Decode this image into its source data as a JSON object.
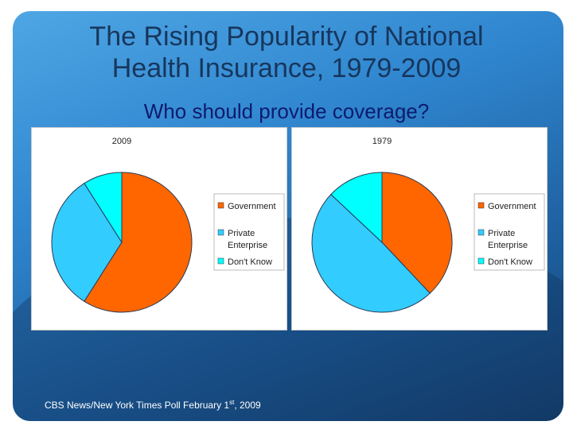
{
  "slide": {
    "title_line1": "The Rising Popularity of National",
    "title_line2": "Health Insurance, 1979-2009",
    "subtitle": "Who should provide coverage?",
    "source_prefix": "CBS News/New York Times Poll February 1",
    "source_sup": "st",
    "source_suffix": ", 2009"
  },
  "chart_data": [
    {
      "type": "pie",
      "title": "2009",
      "categories": [
        "Government",
        "Private Enterprise",
        "Don't Know"
      ],
      "values": [
        59,
        32,
        9
      ],
      "colors": [
        "#ff6600",
        "#33ccff",
        "#00ffff"
      ],
      "legend": {
        "position": "right",
        "entries": [
          "Government",
          "Private",
          "Enterprise",
          "Don't Know"
        ]
      }
    },
    {
      "type": "pie",
      "title": "1979",
      "categories": [
        "Government",
        "Private Enterprise",
        "Don't Know"
      ],
      "values": [
        38,
        49,
        13
      ],
      "colors": [
        "#ff6600",
        "#33ccff",
        "#00ffff"
      ],
      "legend": {
        "position": "right",
        "entries": [
          "Government",
          "Private",
          "Enterprise",
          "Don't Know"
        ]
      }
    }
  ]
}
